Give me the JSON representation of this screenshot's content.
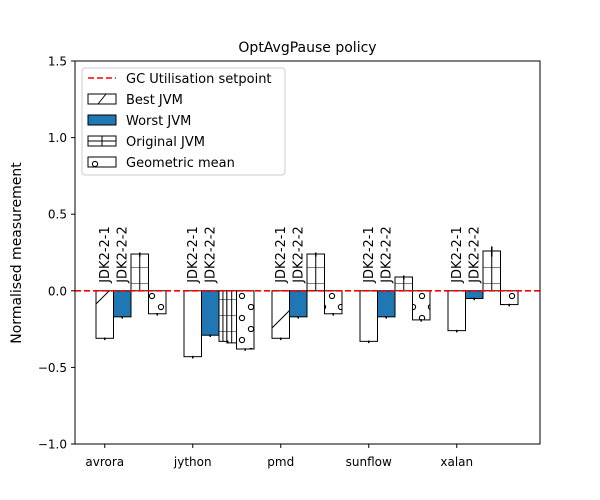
{
  "chart_data": {
    "type": "bar",
    "title": "OptAvgPause policy",
    "xlabel": "",
    "ylabel": "Normalised measurement",
    "ylim": [
      -1.0,
      1.5
    ],
    "yticks": [
      -1.0,
      -0.5,
      0.0,
      0.5,
      1.0,
      1.5
    ],
    "ytick_labels": [
      "−1.0",
      "−0.5",
      "0.0",
      "0.5",
      "1.0",
      "1.5"
    ],
    "categories": [
      "avrora",
      "jython",
      "pmd",
      "sunflow",
      "xalan"
    ],
    "series": [
      {
        "name": "Best JVM",
        "values": [
          -0.31,
          -0.43,
          -0.31,
          -0.33,
          -0.26
        ],
        "errors": [
          0.005,
          0.005,
          0.005,
          0.005,
          0.005
        ],
        "fill": "#ffffff",
        "hatch": "diagonal"
      },
      {
        "name": "Worst JVM",
        "values": [
          -0.17,
          -0.29,
          -0.17,
          -0.17,
          -0.05
        ],
        "errors": [
          0.005,
          0.005,
          0.005,
          0.005,
          0.005
        ],
        "fill": "#1f77b4",
        "hatch": "none"
      },
      {
        "name": "Original JVM",
        "values": [
          0.24,
          -0.33,
          0.24,
          0.09,
          0.26
        ],
        "errors": [
          0.01,
          0.005,
          0.01,
          0.01,
          0.03
        ],
        "fill": "#ffffff",
        "hatch": "grid",
        "extra_bars": [
          null,
          -0.34,
          null,
          null,
          null
        ]
      },
      {
        "name": "Geometric mean",
        "values": [
          -0.15,
          -0.38,
          -0.15,
          -0.19,
          -0.09
        ],
        "errors": [
          0.005,
          0.005,
          0.005,
          0.005,
          0.005
        ],
        "fill": "#ffffff",
        "hatch": "circles"
      }
    ],
    "reference_line": {
      "name": "GC Utilisation setpoint",
      "value": 0.0,
      "color": "#ff0000",
      "style": "dashed"
    },
    "bar_annotations": [
      [
        "JDK2-2-1",
        "JDK2-2-2"
      ],
      [
        "JDK2-2-1",
        "JDK2-2-2"
      ],
      [
        "JDK2-2-1",
        "JDK2-2-2"
      ],
      [
        "JDK2-2-1",
        "JDK2-2-2"
      ],
      [
        "JDK2-2-1",
        "JDK2-2-2"
      ]
    ],
    "legend": {
      "placement": "top-left",
      "entries": [
        "GC Utilisation setpoint",
        "Best JVM",
        "Worst JVM",
        "Original JVM",
        "Geometric mean"
      ]
    },
    "grid": false
  }
}
